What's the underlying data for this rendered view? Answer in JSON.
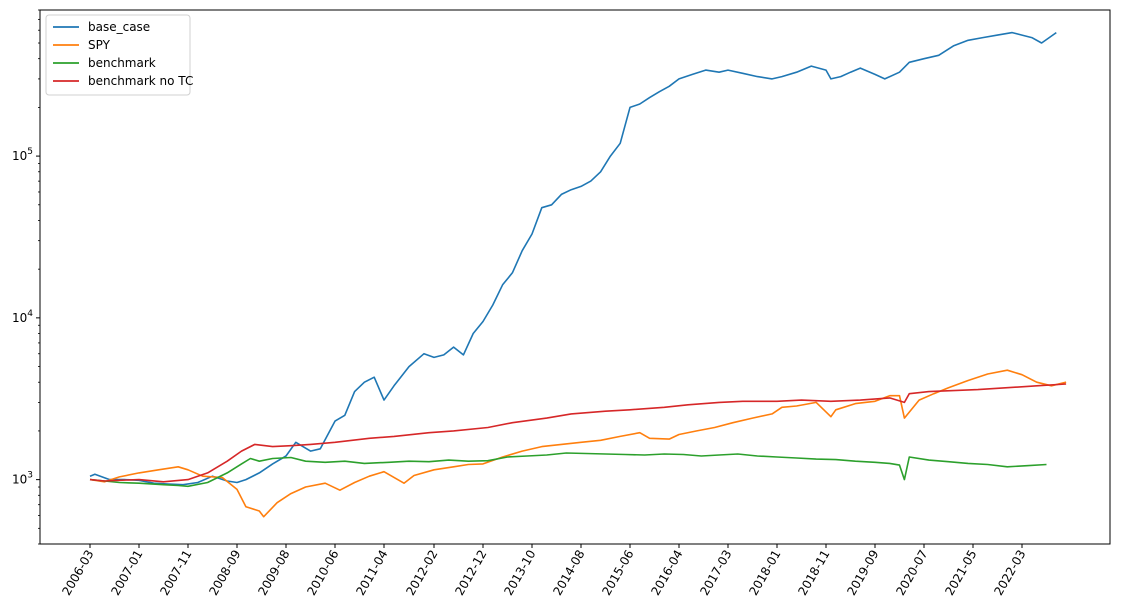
{
  "chart_data": {
    "type": "line",
    "title": "",
    "xlabel": "",
    "ylabel": "",
    "yscale": "log",
    "ylim": [
      400,
      800000
    ],
    "grid": false,
    "legend_position": "top-left",
    "x_ticks": [
      "2006-03",
      "2007-01",
      "2007-11",
      "2008-09",
      "2009-08",
      "2010-06",
      "2011-04",
      "2012-02",
      "2012-12",
      "2013-10",
      "2014-08",
      "2015-06",
      "2016-04",
      "2017-03",
      "2018-01",
      "2018-11",
      "2019-09",
      "2020-07",
      "2021-05",
      "2022-03"
    ],
    "y_ticks": [
      {
        "value": 1000,
        "base": "10",
        "exp": "3"
      },
      {
        "value": 10000,
        "base": "10",
        "exp": "4"
      },
      {
        "value": 100000,
        "base": "10",
        "exp": "5"
      }
    ],
    "series": [
      {
        "name": "base_case",
        "color": "#1f77b4",
        "x": [
          "2006-03",
          "2006-04",
          "2006-07",
          "2006-10",
          "2007-01",
          "2007-04",
          "2007-07",
          "2007-10",
          "2008-01",
          "2008-04",
          "2008-07",
          "2008-09",
          "2008-11",
          "2009-02",
          "2009-05",
          "2009-08",
          "2009-10",
          "2010-01",
          "2010-03",
          "2010-06",
          "2010-08",
          "2010-10",
          "2010-12",
          "2011-02",
          "2011-04",
          "2011-06",
          "2011-09",
          "2011-12",
          "2012-02",
          "2012-04",
          "2012-06",
          "2012-08",
          "2012-10",
          "2012-12",
          "2013-02",
          "2013-04",
          "2013-06",
          "2013-08",
          "2013-10",
          "2013-12",
          "2014-02",
          "2014-04",
          "2014-06",
          "2014-08",
          "2014-10",
          "2014-12",
          "2015-02",
          "2015-04",
          "2015-06",
          "2015-08",
          "2015-10",
          "2015-12",
          "2016-02",
          "2016-04",
          "2016-07",
          "2016-10",
          "2017-01",
          "2017-03",
          "2017-06",
          "2017-09",
          "2017-12",
          "2018-02",
          "2018-05",
          "2018-08",
          "2018-11",
          "2018-12",
          "2019-02",
          "2019-04",
          "2019-06",
          "2019-09",
          "2019-11",
          "2020-02",
          "2020-04",
          "2020-07",
          "2020-10",
          "2021-01",
          "2021-04",
          "2021-07",
          "2021-10",
          "2022-01",
          "2022-03",
          "2022-05",
          "2022-07",
          "2022-10"
        ],
        "values": [
          1050,
          1080,
          1000,
          1000,
          990,
          950,
          940,
          930,
          960,
          1050,
          980,
          960,
          1000,
          1100,
          1250,
          1400,
          1700,
          1500,
          1550,
          2300,
          2500,
          3500,
          4000,
          4300,
          3100,
          3800,
          5000,
          6000,
          5700,
          5900,
          6600,
          5900,
          8000,
          9500,
          12000,
          16000,
          19000,
          26000,
          33000,
          48000,
          50000,
          58000,
          62000,
          65000,
          70000,
          80000,
          100000,
          120000,
          200000,
          210000,
          230000,
          250000,
          270000,
          300000,
          320000,
          340000,
          330000,
          340000,
          325000,
          310000,
          300000,
          310000,
          330000,
          360000,
          340000,
          300000,
          310000,
          330000,
          350000,
          320000,
          300000,
          330000,
          380000,
          400000,
          420000,
          480000,
          520000,
          540000,
          560000,
          580000,
          560000,
          540000,
          500000,
          580000
        ]
      },
      {
        "name": "SPY",
        "color": "#ff7f0e",
        "x": [
          "2006-03",
          "2006-06",
          "2006-09",
          "2007-01",
          "2007-05",
          "2007-09",
          "2007-11",
          "2008-02",
          "2008-06",
          "2008-09",
          "2008-11",
          "2009-02",
          "2009-03",
          "2009-06",
          "2009-09",
          "2009-12",
          "2010-04",
          "2010-07",
          "2010-10",
          "2011-01",
          "2011-04",
          "2011-08",
          "2011-10",
          "2012-02",
          "2012-06",
          "2012-09",
          "2012-12",
          "2013-04",
          "2013-08",
          "2013-12",
          "2014-04",
          "2014-08",
          "2014-12",
          "2015-04",
          "2015-08",
          "2015-10",
          "2016-02",
          "2016-04",
          "2016-08",
          "2016-12",
          "2017-04",
          "2017-08",
          "2017-12",
          "2018-02",
          "2018-05",
          "2018-09",
          "2018-12",
          "2019-01",
          "2019-05",
          "2019-09",
          "2019-12",
          "2020-02",
          "2020-03",
          "2020-06",
          "2020-09",
          "2020-12",
          "2021-04",
          "2021-08",
          "2021-12",
          "2022-03",
          "2022-06",
          "2022-09",
          "2022-12"
        ],
        "values": [
          1000,
          970,
          1040,
          1100,
          1150,
          1200,
          1150,
          1050,
          1030,
          870,
          680,
          640,
          590,
          720,
          820,
          900,
          950,
          860,
          960,
          1050,
          1120,
          950,
          1060,
          1150,
          1200,
          1240,
          1250,
          1380,
          1500,
          1600,
          1650,
          1700,
          1750,
          1850,
          1950,
          1800,
          1780,
          1900,
          2000,
          2100,
          2250,
          2400,
          2550,
          2800,
          2850,
          3000,
          2450,
          2700,
          2950,
          3050,
          3300,
          3300,
          2400,
          3100,
          3400,
          3700,
          4100,
          4500,
          4750,
          4450,
          4000,
          3800,
          4000
        ]
      },
      {
        "name": "benchmark",
        "color": "#2ca02c",
        "x": [
          "2006-03",
          "2006-06",
          "2006-09",
          "2007-01",
          "2007-06",
          "2007-09",
          "2007-11",
          "2008-03",
          "2008-07",
          "2008-10",
          "2008-12",
          "2009-02",
          "2009-05",
          "2009-09",
          "2009-12",
          "2010-04",
          "2010-08",
          "2010-12",
          "2011-05",
          "2011-09",
          "2012-01",
          "2012-05",
          "2012-09",
          "2013-01",
          "2013-05",
          "2013-09",
          "2014-01",
          "2014-05",
          "2014-09",
          "2015-01",
          "2015-05",
          "2015-09",
          "2016-01",
          "2016-05",
          "2016-09",
          "2017-01",
          "2017-05",
          "2017-09",
          "2018-01",
          "2018-05",
          "2018-09",
          "2019-01",
          "2019-05",
          "2019-09",
          "2019-12",
          "2020-02",
          "2020-03",
          "2020-04",
          "2020-08",
          "2020-12",
          "2021-04",
          "2021-08",
          "2021-12",
          "2022-04",
          "2022-08"
        ],
        "values": [
          1000,
          980,
          960,
          950,
          930,
          920,
          910,
          960,
          1100,
          1250,
          1350,
          1300,
          1350,
          1370,
          1300,
          1280,
          1300,
          1260,
          1280,
          1300,
          1290,
          1320,
          1300,
          1310,
          1380,
          1400,
          1420,
          1460,
          1450,
          1440,
          1430,
          1420,
          1440,
          1430,
          1400,
          1420,
          1440,
          1400,
          1380,
          1360,
          1340,
          1330,
          1300,
          1280,
          1260,
          1230,
          1000,
          1380,
          1320,
          1290,
          1260,
          1240,
          1200,
          1220,
          1240
        ]
      },
      {
        "name": "benchmark no TC",
        "color": "#d62728",
        "x": [
          "2006-03",
          "2006-06",
          "2006-09",
          "2007-01",
          "2007-06",
          "2007-11",
          "2008-03",
          "2008-07",
          "2008-10",
          "2009-01",
          "2009-05",
          "2009-09",
          "2010-01",
          "2010-06",
          "2011-01",
          "2011-06",
          "2012-01",
          "2012-06",
          "2013-01",
          "2013-06",
          "2014-01",
          "2014-06",
          "2015-01",
          "2015-06",
          "2016-01",
          "2016-06",
          "2017-01",
          "2017-06",
          "2018-01",
          "2018-06",
          "2018-12",
          "2019-06",
          "2019-12",
          "2020-03",
          "2020-04",
          "2020-08",
          "2021-01",
          "2021-06",
          "2021-12",
          "2022-06",
          "2022-12"
        ],
        "values": [
          1000,
          980,
          990,
          1000,
          970,
          1000,
          1100,
          1300,
          1500,
          1650,
          1600,
          1620,
          1650,
          1700,
          1800,
          1850,
          1950,
          2000,
          2100,
          2250,
          2400,
          2550,
          2650,
          2700,
          2800,
          2900,
          3000,
          3050,
          3050,
          3100,
          3050,
          3100,
          3200,
          3000,
          3400,
          3500,
          3550,
          3600,
          3700,
          3800,
          3900
        ]
      }
    ]
  }
}
